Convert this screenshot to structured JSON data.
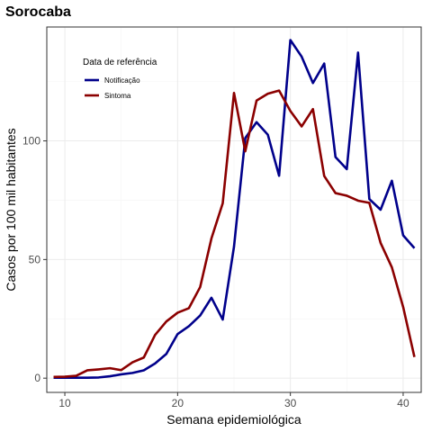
{
  "chart_data": {
    "type": "line",
    "title": "Sorocaba",
    "xlabel": "Semana epidemiológica",
    "ylabel": "Casos por 100 mil habitantes",
    "xlim": [
      8.4,
      41.6
    ],
    "ylim": [
      -6,
      148
    ],
    "x_ticks": [
      10,
      20,
      30,
      40
    ],
    "y_ticks": [
      0,
      50,
      100
    ],
    "grid": true,
    "legend": {
      "title": "Data de referência",
      "placement": "top-left"
    },
    "x": [
      9,
      10,
      11,
      12,
      13,
      14,
      15,
      16,
      17,
      18,
      19,
      20,
      21,
      22,
      23,
      24,
      25,
      26,
      27,
      28,
      29,
      30,
      31,
      32,
      33,
      34,
      35,
      36,
      37,
      38,
      39,
      40,
      41
    ],
    "series": [
      {
        "name": "Notificação",
        "color": "#00008B",
        "values": [
          0.2,
          0.2,
          0.2,
          0.2,
          0.3,
          0.8,
          1.6,
          2.2,
          3.3,
          6.2,
          10.2,
          18.6,
          21.9,
          26.4,
          33.9,
          24.7,
          55.4,
          101.2,
          107.9,
          102.6,
          85.3,
          142.5,
          135.5,
          124.4,
          132.6,
          93.2,
          88.1,
          137.2,
          75.5,
          71.0,
          83.2,
          60.2,
          54.8
        ]
      },
      {
        "name": "Sintoma",
        "color": "#8B0000",
        "values": [
          0.5,
          0.6,
          1.0,
          3.3,
          3.7,
          4.2,
          3.4,
          6.7,
          8.7,
          18.2,
          23.9,
          27.6,
          29.5,
          38.4,
          58.9,
          73.7,
          120.2,
          95.6,
          117.0,
          119.9,
          121.2,
          112.6,
          106.1,
          113.4,
          85.2,
          78.0,
          76.9,
          74.8,
          73.9,
          57.0,
          46.7,
          30.0,
          8.9
        ]
      }
    ]
  }
}
